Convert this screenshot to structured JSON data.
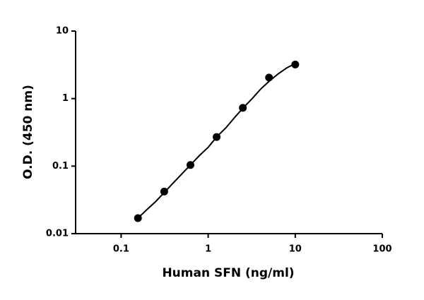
{
  "chart_data": {
    "type": "scatter",
    "x_label": "Human SFN (ng/ml)",
    "y_label": "O.D. (450 nm)",
    "x": [
      0.156,
      0.3125,
      0.625,
      1.25,
      2.5,
      5,
      10
    ],
    "values": [
      0.017,
      0.042,
      0.104,
      0.27,
      0.73,
      2.05,
      3.2
    ],
    "color": "#000000",
    "fit": {
      "x": [
        0.156,
        0.2,
        0.25,
        0.32,
        0.4,
        0.5,
        0.625,
        0.8,
        1,
        1.25,
        1.6,
        2,
        2.5,
        3.2,
        4,
        5,
        6.3,
        8,
        10
      ],
      "y": [
        0.017,
        0.023,
        0.03,
        0.042,
        0.057,
        0.077,
        0.104,
        0.145,
        0.19,
        0.27,
        0.37,
        0.52,
        0.72,
        1.0,
        1.38,
        1.8,
        2.3,
        2.85,
        3.3
      ]
    },
    "log_x": true,
    "log_y": true,
    "xlim": [
      0.03,
      100
    ],
    "xticks": [
      0.1,
      1,
      10,
      100
    ],
    "ylim": [
      0.01,
      10
    ],
    "yticks": [
      0.01,
      0.1,
      1,
      10
    ]
  }
}
